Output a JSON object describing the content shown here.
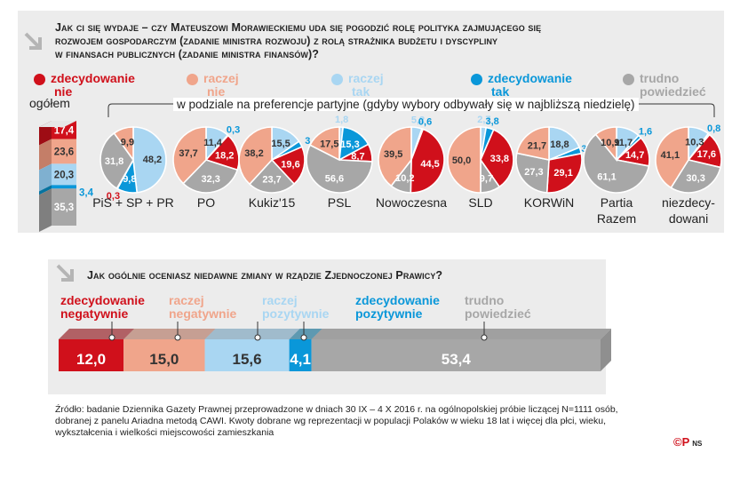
{
  "colors": {
    "zdecydowanie_nie": "#d0101b",
    "raczej_nie": "#f0a58b",
    "raczej_tak": "#a9d6f2",
    "zdecydowanie_tak": "#0a97d9",
    "trudno": "#a7a7a7"
  },
  "q1": {
    "title_line1": "Jak ci się wydaje – czy Mateuszowi Morawieckiemu uda się pogodzić rolę polityka zajmującego się",
    "title_line2": "rozwojem gospodarczym (zadanie ministra rozwoju) z rolą strażnika budżetu i dyscypliny",
    "title_line3": "w finansach publicznych (zadanie ministra finansów)?",
    "legend": [
      {
        "line1": "zdecydowanie",
        "line2": "nie"
      },
      {
        "line1": "raczej",
        "line2": "nie"
      },
      {
        "line1": "raczej",
        "line2": "tak"
      },
      {
        "line1": "zdecydowanie",
        "line2": "tak"
      },
      {
        "line1": "trudno",
        "line2": "powiedzieć"
      }
    ],
    "ogolem_label": "ogółem",
    "subtitle": "w podziale na preferencje partyjne (gdyby wybory odbywały się w najbliższą niedzielę)"
  },
  "chart_data": [
    {
      "type": "bar",
      "title": "ogółem",
      "categories": [
        "zdecydowanie nie",
        "raczej nie",
        "raczej tak",
        "zdecydowanie tak",
        "trudno powiedzieć"
      ],
      "values": [
        17.4,
        23.6,
        20.3,
        3.4,
        35.3
      ],
      "labels": [
        "17,4",
        "23,6",
        "20,3",
        "3,4",
        "35,3"
      ]
    },
    {
      "type": "pie",
      "title": "w podziale na preferencje partyjne (gdyby wybory odbywały się w najbliższą niedzielę)",
      "categories": [
        "zdecydowanie nie",
        "raczej nie",
        "raczej tak",
        "zdecydowanie tak",
        "trudno powiedzieć"
      ],
      "groups": [
        {
          "name_line1": "PiS + SP + PR",
          "name_line2": "",
          "values": [
            0.3,
            9.9,
            48.2,
            9.8,
            31.8
          ],
          "labels": [
            "0,3",
            "9,9",
            "48,2",
            "9,8",
            "31,8"
          ]
        },
        {
          "name_line1": "PO",
          "name_line2": "",
          "values": [
            18.2,
            37.7,
            11.4,
            0.3,
            32.3
          ],
          "labels": [
            "18,2",
            "37,7",
            "11,4",
            "0,3",
            "32,3"
          ]
        },
        {
          "name_line1": "Kukiz'15",
          "name_line2": "",
          "values": [
            19.6,
            38.2,
            15.5,
            3.0,
            23.7
          ],
          "labels": [
            "19,6",
            "38,2",
            "15,5",
            "3",
            "23,7"
          ]
        },
        {
          "name_line1": "PSL",
          "name_line2": "",
          "values": [
            8.7,
            17.5,
            1.8,
            15.3,
            56.6
          ],
          "labels": [
            "8,7",
            "17,5",
            "1,8",
            "15,3",
            "56,6"
          ]
        },
        {
          "name_line1": "Nowoczesna",
          "name_line2": "",
          "values": [
            44.5,
            39.5,
            5.2,
            0.6,
            10.2
          ],
          "labels": [
            "44,5",
            "39,5",
            "5,2",
            "0,6",
            "10,2"
          ]
        },
        {
          "name_line1": "SLD",
          "name_line2": "",
          "values": [
            33.8,
            50.0,
            2.7,
            3.8,
            9.7
          ],
          "labels": [
            "33,8",
            "50,0",
            "2,7",
            "3,8",
            "9,7"
          ]
        },
        {
          "name_line1": "KORWiN",
          "name_line2": "",
          "values": [
            29.1,
            21.7,
            18.8,
            3.1,
            27.3
          ],
          "labels": [
            "29,1",
            "21,7",
            "18,8",
            "3,1",
            "27,3"
          ]
        },
        {
          "name_line1": "Partia",
          "name_line2": "Razem",
          "values": [
            14.7,
            10.9,
            11.7,
            1.6,
            61.1
          ],
          "labels": [
            "14,7",
            "10,9",
            "11,7",
            "1,6",
            "61,1"
          ]
        },
        {
          "name_line1": "niezdecy-",
          "name_line2": "dowani",
          "values": [
            17.6,
            41.1,
            10.3,
            0.8,
            30.3
          ],
          "labels": [
            "17,6",
            "41,1",
            "10,3",
            "0,8",
            "30,3"
          ]
        }
      ]
    },
    {
      "type": "bar",
      "title": "Jak ogólnie oceniasz niedawne zmiany w rządzie Zjednoczonej Prawicy?",
      "categories": [
        "zdecydowanie negatywnie",
        "raczej negatywnie",
        "raczej pozytywnie",
        "zdecydowanie pozytywnie",
        "trudno powiedzieć"
      ],
      "values": [
        12.0,
        15.0,
        15.6,
        4.1,
        53.4
      ],
      "labels": [
        "12,0",
        "15,0",
        "15,6",
        "4,1",
        "53,4"
      ]
    }
  ],
  "q2": {
    "title": "Jak ogólnie oceniasz niedawne zmiany w rządzie Zjednoczonej Prawicy?",
    "legend": [
      {
        "line1": "zdecydowanie",
        "line2": "negatywnie"
      },
      {
        "line1": "raczej",
        "line2": "negatywnie"
      },
      {
        "line1": "raczej",
        "line2": "pozytywnie"
      },
      {
        "line1": "zdecydowanie",
        "line2": "pozytywnie"
      },
      {
        "line1": "trudno",
        "line2": "powiedzieć"
      }
    ]
  },
  "footer": {
    "line1": "Źródło: badanie Dziennika Gazety Prawnej przeprowadzone w dniach 30 IX – 4 X 2016 r. na ogólnopolskiej próbie liczącej N=1111 osób,",
    "line2": "dobranej z panelu Ariadna metodą CAWI. Kwoty dobrane wg reprezentacji w populacji Polaków w wieku 18 lat i więcej dla płci, wieku,",
    "line3": "wykształcenia i wielkości miejscowości zamieszkania",
    "credit_mark": "©P",
    "credit_initials": "NS"
  }
}
